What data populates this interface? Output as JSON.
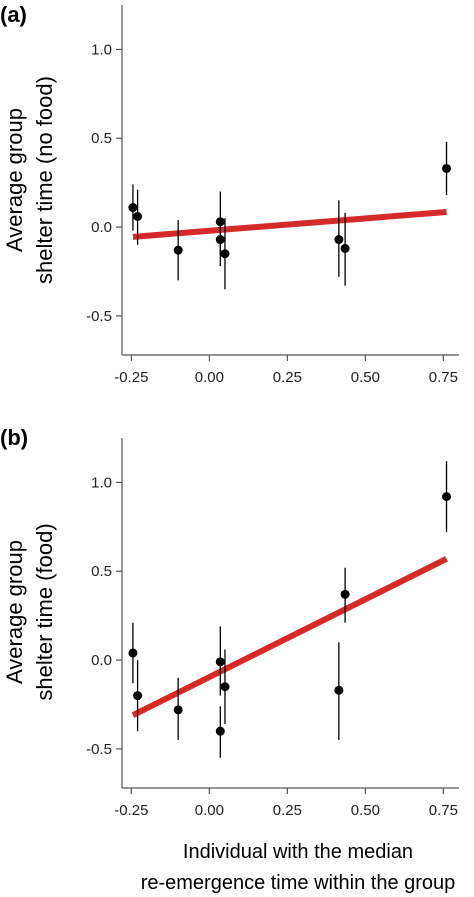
{
  "chart_data": [
    {
      "type": "scatter",
      "panel_label": "(a)",
      "ylabel_lines": [
        "Average group",
        "shelter time (no food)"
      ],
      "xlim": [
        -0.28,
        0.8
      ],
      "ylim": [
        -0.72,
        1.25
      ],
      "xticks": [
        -0.25,
        0.0,
        0.25,
        0.5,
        0.75
      ],
      "xtick_labels": [
        "-0.25",
        "0.00",
        "0.25",
        "0.50",
        "0.75"
      ],
      "yticks": [
        1.0,
        0.5,
        0.0,
        -0.5
      ],
      "ytick_labels": [
        "1.0",
        "0.5",
        "0.0",
        "-0.5"
      ],
      "points": [
        {
          "x": -0.245,
          "y": 0.11,
          "lo": -0.02,
          "hi": 0.24
        },
        {
          "x": -0.23,
          "y": 0.06,
          "lo": -0.1,
          "hi": 0.21
        },
        {
          "x": -0.1,
          "y": -0.13,
          "lo": -0.3,
          "hi": 0.04
        },
        {
          "x": 0.035,
          "y": 0.03,
          "lo": -0.15,
          "hi": 0.2
        },
        {
          "x": 0.035,
          "y": -0.07,
          "lo": -0.22,
          "hi": 0.06
        },
        {
          "x": 0.05,
          "y": -0.15,
          "lo": -0.35,
          "hi": 0.05
        },
        {
          "x": 0.415,
          "y": -0.07,
          "lo": -0.28,
          "hi": 0.15
        },
        {
          "x": 0.435,
          "y": -0.12,
          "lo": -0.33,
          "hi": 0.08
        },
        {
          "x": 0.76,
          "y": 0.33,
          "lo": 0.18,
          "hi": 0.48
        }
      ],
      "fit_line": {
        "x": [
          -0.245,
          0.76
        ],
        "y": [
          -0.055,
          0.085
        ]
      },
      "fit_color": "#d42a2a"
    },
    {
      "type": "scatter",
      "panel_label": "(b)",
      "ylabel_lines": [
        "Average group",
        "shelter time (food)"
      ],
      "xlim": [
        -0.28,
        0.8
      ],
      "ylim": [
        -0.72,
        1.25
      ],
      "xticks": [
        -0.25,
        0.0,
        0.25,
        0.5,
        0.75
      ],
      "xtick_labels": [
        "-0.25",
        "0.00",
        "0.25",
        "0.50",
        "0.75"
      ],
      "yticks": [
        1.0,
        0.5,
        0.0,
        -0.5
      ],
      "ytick_labels": [
        "1.0",
        "0.5",
        "0.0",
        "-0.5"
      ],
      "points": [
        {
          "x": -0.245,
          "y": 0.04,
          "lo": -0.13,
          "hi": 0.21
        },
        {
          "x": -0.23,
          "y": -0.2,
          "lo": -0.4,
          "hi": 0.0
        },
        {
          "x": -0.1,
          "y": -0.28,
          "lo": -0.45,
          "hi": -0.1
        },
        {
          "x": 0.035,
          "y": -0.01,
          "lo": -0.2,
          "hi": 0.19
        },
        {
          "x": 0.035,
          "y": -0.4,
          "lo": -0.55,
          "hi": -0.26
        },
        {
          "x": 0.05,
          "y": -0.15,
          "lo": -0.36,
          "hi": 0.06
        },
        {
          "x": 0.415,
          "y": -0.17,
          "lo": -0.45,
          "hi": 0.1
        },
        {
          "x": 0.435,
          "y": 0.37,
          "lo": 0.21,
          "hi": 0.52
        },
        {
          "x": 0.76,
          "y": 0.92,
          "lo": 0.72,
          "hi": 1.12
        }
      ],
      "fit_line": {
        "x": [
          -0.245,
          0.76
        ],
        "y": [
          -0.31,
          0.57
        ]
      },
      "fit_color": "#d42a2a"
    }
  ],
  "shared_xlabel_lines": [
    "Individual with the median",
    "re-emergence time within the group"
  ]
}
